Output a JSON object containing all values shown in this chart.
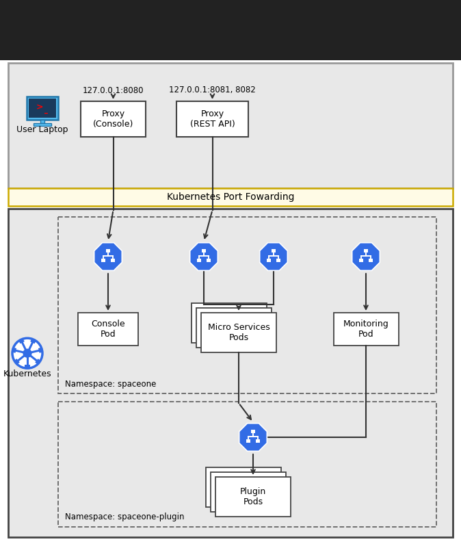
{
  "port_forwarding_label": "Kubernetes Port Fowarding",
  "namespace1_label": "Namespace: spaceone",
  "namespace2_label": "Namespace: spaceone-plugin",
  "proxy_console_label": "Proxy\n(Console)",
  "proxy_rest_label": "Proxy\n(REST API)",
  "addr_console": "127.0.0.1:8080",
  "addr_rest": "127.0.0.1:8081, 8082",
  "console_pod_label": "Console\nPod",
  "micro_services_label": "Micro Services\nPods",
  "monitoring_pod_label": "Monitoring\nPod",
  "plugin_pods_label": "Plugin\nPods",
  "kubernetes_label": "Kubernetes",
  "user_laptop_label": "User Laptop",
  "top_bg": "#e8e8e8",
  "top_border": "#999999",
  "k8s_bg": "#e8e8e8",
  "k8s_border": "#444444",
  "pf_bg": "#fffbe6",
  "pf_border": "#ccaa00",
  "ns_border": "#666666",
  "box_border": "#444444",
  "arrow_color": "#333333",
  "k8s_blue": "#326CE5",
  "white": "#ffffff",
  "black": "#000000",
  "top_bar_bg": "#222222"
}
